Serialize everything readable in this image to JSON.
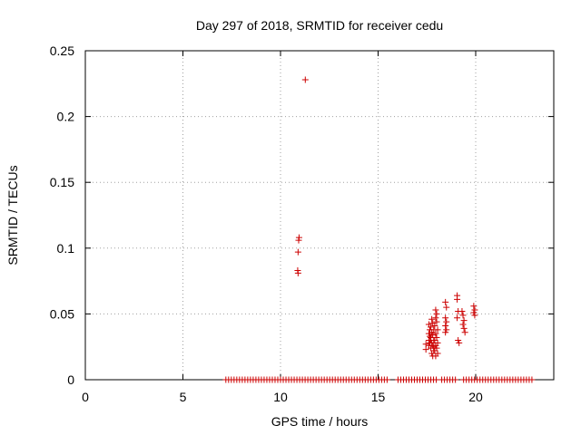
{
  "chart_data": {
    "type": "scatter",
    "title": "Day 297 of 2018, SRMTID for receiver cedu",
    "xlabel": "GPS time / hours",
    "ylabel": "SRMTID / TECUs",
    "xlim": [
      0,
      24
    ],
    "ylim": [
      0,
      0.25
    ],
    "xticks": [
      0,
      5,
      10,
      15,
      20
    ],
    "yticks": [
      0,
      0.05,
      0.1,
      0.15,
      0.2,
      0.25
    ],
    "xtick_labels": [
      "0",
      "5",
      "10",
      "15",
      "20"
    ],
    "ytick_labels": [
      "0",
      "0.05",
      "0.1",
      "0.15",
      "0.2",
      "0.25"
    ],
    "grid": true,
    "marker": "+",
    "color": "#cc0000",
    "series": [
      {
        "name": "SRMTID",
        "points": [
          [
            11.27,
            0.228
          ],
          [
            10.95,
            0.108
          ],
          [
            10.93,
            0.106
          ],
          [
            10.9,
            0.097
          ],
          [
            10.88,
            0.083
          ],
          [
            10.9,
            0.081
          ],
          [
            19.05,
            0.064
          ],
          [
            19.05,
            0.061
          ],
          [
            19.1,
            0.052
          ],
          [
            19.05,
            0.047
          ],
          [
            19.1,
            0.03
          ],
          [
            19.15,
            0.028
          ],
          [
            19.3,
            0.052
          ],
          [
            19.35,
            0.049
          ],
          [
            19.4,
            0.045
          ],
          [
            19.35,
            0.042
          ],
          [
            19.4,
            0.039
          ],
          [
            19.45,
            0.036
          ],
          [
            19.9,
            0.056
          ],
          [
            19.95,
            0.053
          ],
          [
            19.9,
            0.051
          ],
          [
            19.95,
            0.049
          ],
          [
            18.45,
            0.059
          ],
          [
            18.5,
            0.055
          ],
          [
            18.45,
            0.047
          ],
          [
            18.5,
            0.044
          ],
          [
            18.45,
            0.041
          ],
          [
            18.5,
            0.038
          ],
          [
            18.45,
            0.036
          ],
          [
            17.95,
            0.053
          ],
          [
            18.0,
            0.05
          ],
          [
            17.95,
            0.047
          ],
          [
            18.0,
            0.044
          ],
          [
            17.9,
            0.041
          ],
          [
            18.05,
            0.038
          ],
          [
            17.95,
            0.035
          ],
          [
            18.0,
            0.032
          ],
          [
            17.9,
            0.03
          ],
          [
            18.05,
            0.028
          ],
          [
            17.95,
            0.026
          ],
          [
            18.0,
            0.024
          ],
          [
            17.9,
            0.022
          ],
          [
            18.05,
            0.02
          ],
          [
            17.95,
            0.018
          ],
          [
            17.75,
            0.046
          ],
          [
            17.8,
            0.043
          ],
          [
            17.7,
            0.04
          ],
          [
            17.85,
            0.038
          ],
          [
            17.75,
            0.036
          ],
          [
            17.8,
            0.034
          ],
          [
            17.7,
            0.032
          ],
          [
            17.85,
            0.03
          ],
          [
            17.75,
            0.028
          ],
          [
            17.8,
            0.026
          ],
          [
            17.7,
            0.024
          ],
          [
            17.85,
            0.022
          ],
          [
            17.75,
            0.02
          ],
          [
            17.8,
            0.018
          ],
          [
            17.7,
            0.03
          ],
          [
            17.85,
            0.025
          ],
          [
            17.6,
            0.042
          ],
          [
            17.65,
            0.038
          ],
          [
            17.6,
            0.035
          ],
          [
            17.65,
            0.033
          ],
          [
            17.6,
            0.03
          ],
          [
            17.65,
            0.028
          ],
          [
            17.6,
            0.026
          ],
          [
            17.45,
            0.027
          ],
          [
            17.45,
            0.023
          ]
        ],
        "zero_band": {
          "y": 0,
          "x_from": 7.2,
          "x_to": 22.9,
          "step": 0.14,
          "gaps": [
            [
              15.5,
              15.9
            ],
            [
              18.05,
              18.2
            ],
            [
              19.1,
              19.3
            ]
          ]
        }
      }
    ]
  }
}
